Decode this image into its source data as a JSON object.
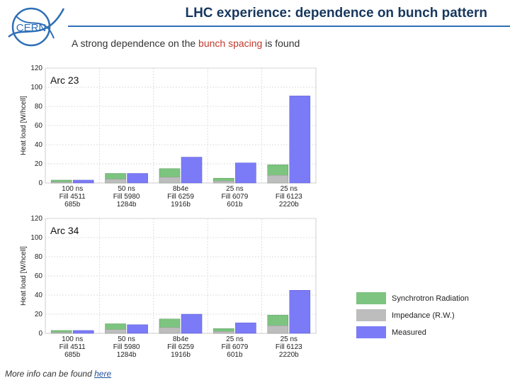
{
  "header": {
    "logo_text": "CERN",
    "title": "LHC experience: dependence on bunch pattern",
    "subtitle_before": "A strong dependence on the ",
    "subtitle_accent": "bunch spacing",
    "subtitle_after": " is found"
  },
  "colors": {
    "title": "#17375e",
    "rule": "#2e6fb5",
    "accent": "#c0392b",
    "synchrotron": "#7cc47f",
    "impedance": "#bdbdbd",
    "measured": "#7b7bf7"
  },
  "legend": [
    {
      "key": "synchrotron",
      "label": "Synchrotron Radiation"
    },
    {
      "key": "impedance",
      "label": "Impedance (R.W.)"
    },
    {
      "key": "measured",
      "label": "Measured"
    }
  ],
  "chart_data": [
    {
      "type": "bar",
      "title": "Arc 23",
      "ylabel": "Heat load [W/hcell]",
      "xlabel": "",
      "ylim": [
        0,
        120
      ],
      "yticks": [
        0,
        20,
        40,
        60,
        80,
        100,
        120
      ],
      "grid": true,
      "categories": [
        [
          "100 ns",
          "Fill 4511",
          "685b"
        ],
        [
          "50 ns",
          "Fill 5980",
          "1284b"
        ],
        [
          "8b4e",
          "Fill 6259",
          "1916b"
        ],
        [
          "25 ns",
          "Fill 6079",
          "601b"
        ],
        [
          "25 ns",
          "Fill 6123",
          "2220b"
        ]
      ],
      "impedance": [
        1,
        4,
        6,
        2,
        8
      ],
      "synchrotron": [
        3,
        10,
        15,
        5,
        19
      ],
      "measured": [
        3,
        10,
        27,
        21,
        91
      ]
    },
    {
      "type": "bar",
      "title": "Arc 34",
      "ylabel": "Heat load [W/hcell]",
      "xlabel": "",
      "ylim": [
        0,
        120
      ],
      "yticks": [
        0,
        20,
        40,
        60,
        80,
        100,
        120
      ],
      "grid": true,
      "categories": [
        [
          "100 ns",
          "Fill 4511",
          "685b"
        ],
        [
          "50 ns",
          "Fill 5980",
          "1284b"
        ],
        [
          "8b4e",
          "Fill 6259",
          "1916b"
        ],
        [
          "25 ns",
          "Fill 6079",
          "601b"
        ],
        [
          "25 ns",
          "Fill 6123",
          "2220b"
        ]
      ],
      "impedance": [
        1,
        4,
        6,
        2,
        8
      ],
      "synchrotron": [
        3,
        10,
        15,
        5,
        19
      ],
      "measured": [
        3,
        9,
        20,
        11,
        45
      ]
    }
  ],
  "footer": {
    "text": "More info can be found ",
    "link": "here"
  }
}
